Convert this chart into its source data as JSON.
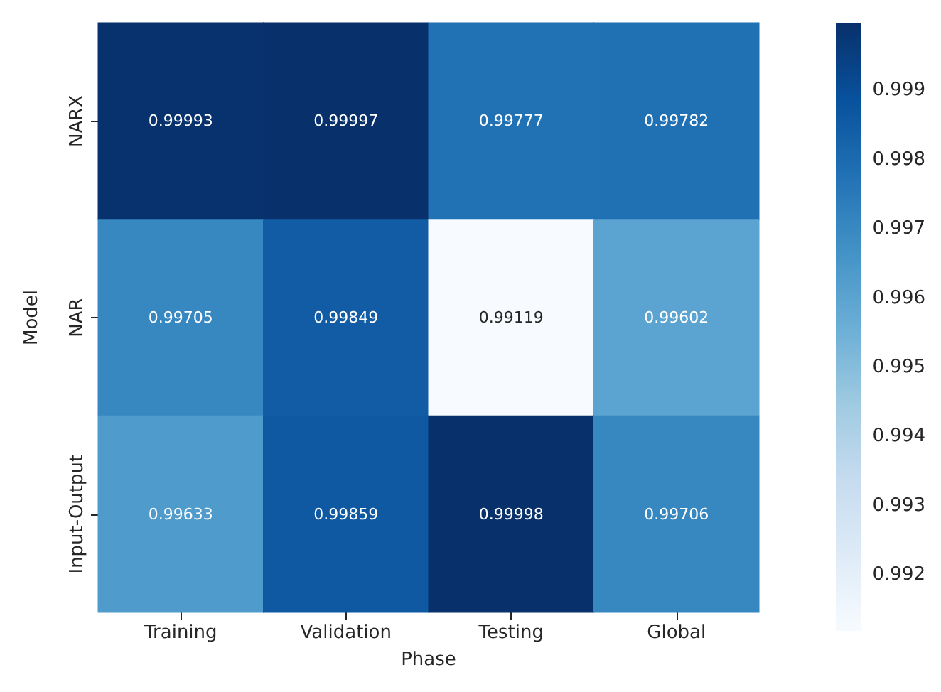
{
  "chart_data": {
    "type": "heatmap",
    "xlabel": "Phase",
    "ylabel": "Model",
    "categories": [
      "Training",
      "Validation",
      "Testing",
      "Global"
    ],
    "y_categories": [
      "NARX",
      "NAR",
      "Input-Output"
    ],
    "cells": [
      [
        0.99993,
        0.99997,
        0.99777,
        0.99782
      ],
      [
        0.99705,
        0.99849,
        0.99119,
        0.99602
      ],
      [
        0.99633,
        0.99859,
        0.99998,
        0.99706
      ]
    ],
    "data_labels": true,
    "clim": [
      0.99119,
      0.99998
    ],
    "cticks": [
      0.992,
      0.993,
      0.994,
      0.995,
      0.996,
      0.997,
      0.998,
      0.999
    ]
  }
}
